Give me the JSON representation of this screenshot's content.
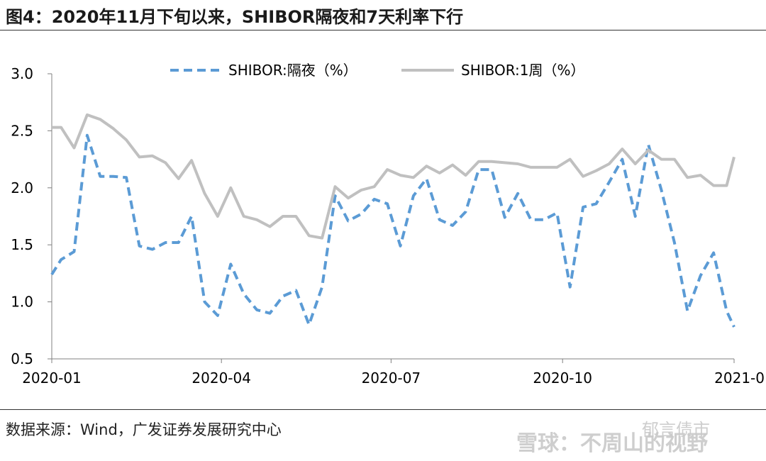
{
  "header": {
    "title": "图4：2020年11月下旬以来，SHIBOR隔夜和7天利率下行"
  },
  "footer": {
    "source": "数据来源：Wind，广发证券发展研究中心"
  },
  "watermark": {
    "line1": "郁言债市",
    "line2": "雪球：不周山的视野"
  },
  "chart_data": {
    "type": "line",
    "title": "",
    "xlabel": "",
    "ylabel": "",
    "ylim": [
      0.5,
      3.0
    ],
    "yticks": [
      "3.0",
      "2.5",
      "2.0",
      "1.5",
      "1.0",
      "0.5"
    ],
    "xticks": [
      "2020-01",
      "2020-04",
      "2020-07",
      "2020-10",
      "2021-0"
    ],
    "legend_position": "top",
    "grid": false,
    "series": [
      {
        "name": "SHIBOR:隔夜（%）",
        "style": "dashed",
        "color": "#5b9bd5",
        "points": [
          [
            "2020-01-01",
            1.24
          ],
          [
            "2020-01-06",
            1.37
          ],
          [
            "2020-01-13",
            1.44
          ],
          [
            "2020-01-20",
            2.46
          ],
          [
            "2020-01-27",
            2.1
          ],
          [
            "2020-02-03",
            2.1
          ],
          [
            "2020-02-10",
            2.09
          ],
          [
            "2020-02-17",
            1.49
          ],
          [
            "2020-02-24",
            1.46
          ],
          [
            "2020-03-02",
            1.52
          ],
          [
            "2020-03-09",
            1.52
          ],
          [
            "2020-03-16",
            1.75
          ],
          [
            "2020-03-23",
            1.0
          ],
          [
            "2020-03-30",
            0.88
          ],
          [
            "2020-04-06",
            1.33
          ],
          [
            "2020-04-13",
            1.07
          ],
          [
            "2020-04-20",
            0.93
          ],
          [
            "2020-04-27",
            0.9
          ],
          [
            "2020-05-04",
            1.05
          ],
          [
            "2020-05-11",
            1.1
          ],
          [
            "2020-05-18",
            0.8
          ],
          [
            "2020-05-25",
            1.13
          ],
          [
            "2020-06-01",
            1.93
          ],
          [
            "2020-06-08",
            1.71
          ],
          [
            "2020-06-15",
            1.77
          ],
          [
            "2020-06-22",
            1.9
          ],
          [
            "2020-06-29",
            1.86
          ],
          [
            "2020-07-06",
            1.49
          ],
          [
            "2020-07-13",
            1.93
          ],
          [
            "2020-07-20",
            2.08
          ],
          [
            "2020-07-27",
            1.72
          ],
          [
            "2020-08-03",
            1.67
          ],
          [
            "2020-08-10",
            1.79
          ],
          [
            "2020-08-17",
            2.16
          ],
          [
            "2020-08-24",
            2.16
          ],
          [
            "2020-08-31",
            1.74
          ],
          [
            "2020-09-07",
            1.95
          ],
          [
            "2020-09-14",
            1.72
          ],
          [
            "2020-09-21",
            1.72
          ],
          [
            "2020-09-28",
            1.78
          ],
          [
            "2020-10-05",
            1.13
          ],
          [
            "2020-10-12",
            1.83
          ],
          [
            "2020-10-19",
            1.86
          ],
          [
            "2020-10-26",
            2.05
          ],
          [
            "2020-11-02",
            2.25
          ],
          [
            "2020-11-09",
            1.75
          ],
          [
            "2020-11-16",
            2.38
          ],
          [
            "2020-11-23",
            1.98
          ],
          [
            "2020-11-30",
            1.52
          ],
          [
            "2020-12-07",
            0.92
          ],
          [
            "2020-12-14",
            1.23
          ],
          [
            "2020-12-21",
            1.43
          ],
          [
            "2020-12-28",
            0.92
          ],
          [
            "2021-01-01",
            0.78
          ]
        ]
      },
      {
        "name": "SHIBOR:1周（%）",
        "style": "solid",
        "color": "#c0c0c0",
        "points": [
          [
            "2020-01-01",
            2.53
          ],
          [
            "2020-01-06",
            2.53
          ],
          [
            "2020-01-13",
            2.35
          ],
          [
            "2020-01-20",
            2.64
          ],
          [
            "2020-01-27",
            2.6
          ],
          [
            "2020-02-03",
            2.52
          ],
          [
            "2020-02-10",
            2.42
          ],
          [
            "2020-02-17",
            2.27
          ],
          [
            "2020-02-24",
            2.28
          ],
          [
            "2020-03-02",
            2.22
          ],
          [
            "2020-03-09",
            2.08
          ],
          [
            "2020-03-16",
            2.24
          ],
          [
            "2020-03-23",
            1.95
          ],
          [
            "2020-03-30",
            1.75
          ],
          [
            "2020-04-06",
            2.0
          ],
          [
            "2020-04-13",
            1.75
          ],
          [
            "2020-04-20",
            1.72
          ],
          [
            "2020-04-27",
            1.66
          ],
          [
            "2020-05-04",
            1.75
          ],
          [
            "2020-05-11",
            1.75
          ],
          [
            "2020-05-18",
            1.58
          ],
          [
            "2020-05-25",
            1.56
          ],
          [
            "2020-06-01",
            2.01
          ],
          [
            "2020-06-08",
            1.91
          ],
          [
            "2020-06-15",
            1.98
          ],
          [
            "2020-06-22",
            2.01
          ],
          [
            "2020-06-29",
            2.16
          ],
          [
            "2020-07-06",
            2.11
          ],
          [
            "2020-07-13",
            2.09
          ],
          [
            "2020-07-20",
            2.19
          ],
          [
            "2020-07-27",
            2.13
          ],
          [
            "2020-08-03",
            2.2
          ],
          [
            "2020-08-10",
            2.11
          ],
          [
            "2020-08-17",
            2.23
          ],
          [
            "2020-08-24",
            2.23
          ],
          [
            "2020-08-31",
            2.22
          ],
          [
            "2020-09-07",
            2.21
          ],
          [
            "2020-09-14",
            2.18
          ],
          [
            "2020-09-21",
            2.18
          ],
          [
            "2020-09-28",
            2.18
          ],
          [
            "2020-10-05",
            2.25
          ],
          [
            "2020-10-12",
            2.1
          ],
          [
            "2020-10-19",
            2.15
          ],
          [
            "2020-10-26",
            2.21
          ],
          [
            "2020-11-02",
            2.34
          ],
          [
            "2020-11-09",
            2.21
          ],
          [
            "2020-11-16",
            2.33
          ],
          [
            "2020-11-23",
            2.25
          ],
          [
            "2020-11-30",
            2.25
          ],
          [
            "2020-12-07",
            2.09
          ],
          [
            "2020-12-14",
            2.11
          ],
          [
            "2020-12-21",
            2.02
          ],
          [
            "2020-12-28",
            2.02
          ],
          [
            "2021-01-01",
            2.27
          ]
        ]
      }
    ]
  }
}
